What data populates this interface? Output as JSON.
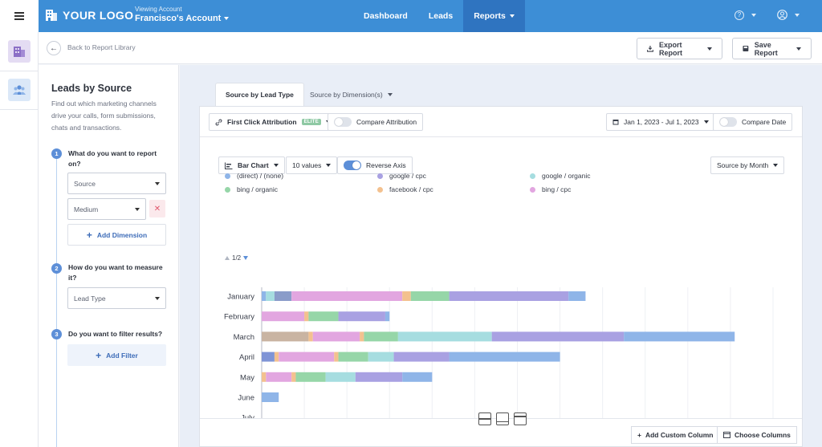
{
  "header": {
    "logo_text": "YOUR LOGO",
    "viewing_label": "Viewing Account",
    "account_name": "Francisco's Account",
    "nav": [
      {
        "label": "Dashboard"
      },
      {
        "label": "Leads"
      },
      {
        "label": "Reports"
      }
    ],
    "help_icon": "?",
    "brand_color": "#3d8ed6"
  },
  "subheader": {
    "back_label": "Back to Report Library",
    "export_label": "Export Report",
    "save_label": "Save Report"
  },
  "panel": {
    "title": "Leads by Source",
    "description": "Find out which marketing channels drive your calls, form submissions, chats and transactions.",
    "steps": [
      {
        "num": "1",
        "question": "What do you want to report on?"
      },
      {
        "num": "2",
        "question": "How do you want to measure it?"
      },
      {
        "num": "3",
        "question": "Do you want to filter results?"
      }
    ],
    "dimension_1": "Source",
    "dimension_2": "Medium",
    "remove_symbol": "✕",
    "add_dimension_label": "Add Dimension",
    "measure_value": "Lead Type",
    "add_filter_label": "Add Filter"
  },
  "tabs": [
    {
      "label": "Source by Lead Type"
    },
    {
      "label": "Source by Dimension(s)"
    }
  ],
  "toolbar": {
    "attribution_label": "First Click Attribution",
    "elite_badge": "ELITE",
    "compare_attribution_label": "Compare Attribution",
    "date_range": "Jan 1, 2023 - Jul 1, 2023",
    "compare_date_label": "Compare Date"
  },
  "chart_controls": {
    "chart_type_label": "Bar Chart",
    "values_label": "10 values",
    "reverse_axis_label": "Reverse Axis",
    "group_by_label": "Source by Month",
    "pager_label": "1/2"
  },
  "footer": {
    "add_column_label": "Add Custom Column",
    "choose_columns_label": "Choose Columns"
  },
  "chart_data": {
    "type": "bar",
    "orientation": "horizontal",
    "stacked": true,
    "legend_placement": "top-left",
    "grid": true,
    "categories": [
      "January",
      "February",
      "March",
      "April",
      "May",
      "June",
      "July"
    ],
    "xlim": [
      0,
      120
    ],
    "xticks": [
      0,
      10,
      20,
      30,
      40,
      50,
      60,
      70,
      80,
      90,
      100,
      110,
      120
    ],
    "legend": [
      {
        "name": "(direct) / (none)",
        "color": "#8fb5e8"
      },
      {
        "name": "google / cpc",
        "color": "#a9a1e2"
      },
      {
        "name": "google / organic",
        "color": "#a6dde0"
      },
      {
        "name": "bing / organic",
        "color": "#96d6a8"
      },
      {
        "name": "facebook / cpc",
        "color": "#f3c18f"
      },
      {
        "name": "bing / cpc",
        "color": "#e2a6e0"
      }
    ],
    "rows": [
      {
        "category": "January",
        "segments": [
          {
            "value": 1,
            "color": "#8fb5e8"
          },
          {
            "value": 2,
            "color": "#a6dde0"
          },
          {
            "value": 4,
            "color": "#8a9cc9"
          },
          {
            "value": 26,
            "color": "#e2a6e0"
          },
          {
            "value": 2,
            "color": "#f3c18f"
          },
          {
            "value": 9,
            "color": "#96d6a8"
          },
          {
            "value": 28,
            "color": "#a9a1e2"
          },
          {
            "value": 4,
            "color": "#8fb5e8"
          }
        ]
      },
      {
        "category": "February",
        "segments": [
          {
            "value": 10,
            "color": "#e2a6e0"
          },
          {
            "value": 1,
            "color": "#f3c18f"
          },
          {
            "value": 7,
            "color": "#96d6a8"
          },
          {
            "value": 11,
            "color": "#a9a1e2"
          },
          {
            "value": 1,
            "color": "#8fb5e8"
          }
        ]
      },
      {
        "category": "March",
        "segments": [
          {
            "value": 11,
            "color": "#c9b4a2"
          },
          {
            "value": 1,
            "color": "#f3c18f"
          },
          {
            "value": 11,
            "color": "#e2a6e0"
          },
          {
            "value": 1,
            "color": "#f3c18f"
          },
          {
            "value": 8,
            "color": "#96d6a8"
          },
          {
            "value": 22,
            "color": "#a6dde0"
          },
          {
            "value": 31,
            "color": "#a9a1e2"
          },
          {
            "value": 26,
            "color": "#8fb5e8"
          }
        ]
      },
      {
        "category": "April",
        "segments": [
          {
            "value": 3,
            "color": "#7f94d6"
          },
          {
            "value": 1,
            "color": "#f3c18f"
          },
          {
            "value": 13,
            "color": "#e2a6e0"
          },
          {
            "value": 1,
            "color": "#f3c18f"
          },
          {
            "value": 7,
            "color": "#96d6a8"
          },
          {
            "value": 6,
            "color": "#a6dde0"
          },
          {
            "value": 13,
            "color": "#a9a1e2"
          },
          {
            "value": 26,
            "color": "#8fb5e8"
          }
        ]
      },
      {
        "category": "May",
        "segments": [
          {
            "value": 1,
            "color": "#f3c18f"
          },
          {
            "value": 6,
            "color": "#e2a6e0"
          },
          {
            "value": 1,
            "color": "#f3c18f"
          },
          {
            "value": 7,
            "color": "#96d6a8"
          },
          {
            "value": 7,
            "color": "#a6dde0"
          },
          {
            "value": 11,
            "color": "#a9a1e2"
          },
          {
            "value": 7,
            "color": "#8fb5e8"
          }
        ]
      },
      {
        "category": "June",
        "segments": [
          {
            "value": 4,
            "color": "#8fb5e8"
          }
        ]
      },
      {
        "category": "July",
        "segments": []
      }
    ]
  }
}
